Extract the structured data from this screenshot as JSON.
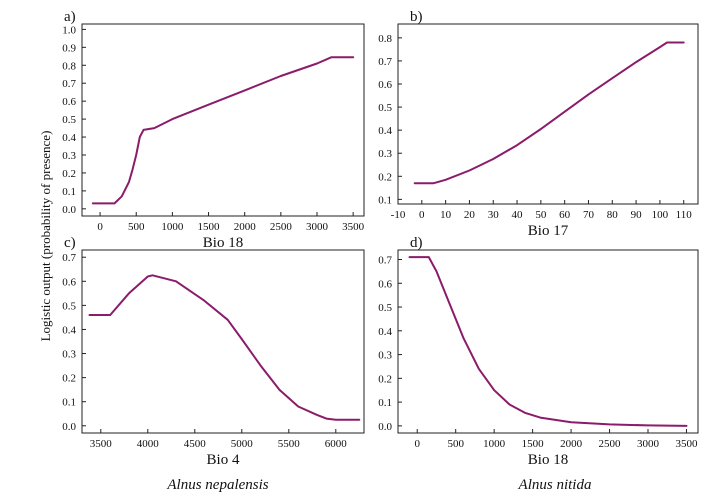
{
  "ylabel": "Logistic output (probability of presence)",
  "species": [
    "Alnus nepalensis",
    "Alnus nitida"
  ],
  "chart_data": [
    {
      "type": "line",
      "panel": "a)",
      "xlabel": "Bio 18",
      "xlim": [
        -250,
        3650
      ],
      "ylim": [
        -0.04,
        1.03
      ],
      "xticks": [
        0,
        500,
        1000,
        1500,
        2000,
        2500,
        3000,
        3500
      ],
      "yticks": [
        0.0,
        0.1,
        0.2,
        0.3,
        0.4,
        0.5,
        0.6,
        0.7,
        0.8,
        0.9,
        1.0
      ],
      "ytick_labels": [
        "0.0",
        "0.1",
        "0.2",
        "0.3",
        "0.4",
        "0.5",
        "0.6",
        "0.7",
        "0.8",
        "0.9",
        "1.0"
      ],
      "x": [
        -100,
        200,
        300,
        400,
        450,
        500,
        550,
        600,
        750,
        1000,
        1500,
        2000,
        2500,
        3000,
        3200,
        3500
      ],
      "y": [
        0.03,
        0.03,
        0.07,
        0.15,
        0.22,
        0.3,
        0.4,
        0.44,
        0.45,
        0.5,
        0.58,
        0.66,
        0.74,
        0.81,
        0.845,
        0.845
      ]
    },
    {
      "type": "line",
      "panel": "b)",
      "xlabel": "Bio 17",
      "xlim": [
        -10,
        116
      ],
      "ylim": [
        0.08,
        0.86
      ],
      "xticks": [
        -10,
        0,
        10,
        20,
        30,
        40,
        50,
        60,
        70,
        80,
        90,
        100,
        110
      ],
      "yticks": [
        0.1,
        0.2,
        0.3,
        0.4,
        0.5,
        0.6,
        0.7,
        0.8
      ],
      "ytick_labels": [
        "0.1",
        "0.2",
        "0.3",
        "0.4",
        "0.5",
        "0.6",
        "0.7",
        "0.8"
      ],
      "x": [
        -3,
        5,
        10,
        20,
        30,
        40,
        50,
        60,
        70,
        80,
        90,
        100,
        103,
        110
      ],
      "y": [
        0.17,
        0.17,
        0.185,
        0.225,
        0.275,
        0.335,
        0.405,
        0.48,
        0.555,
        0.625,
        0.695,
        0.76,
        0.78,
        0.78
      ]
    },
    {
      "type": "line",
      "panel": "c)",
      "xlabel": "Bio 4",
      "xlim": [
        3300,
        6300
      ],
      "ylim": [
        -0.03,
        0.73
      ],
      "xticks": [
        3500,
        4000,
        4500,
        5000,
        5500,
        6000
      ],
      "yticks": [
        0.0,
        0.1,
        0.2,
        0.3,
        0.4,
        0.5,
        0.6,
        0.7
      ],
      "ytick_labels": [
        "0.0",
        "0.1",
        "0.2",
        "0.3",
        "0.4",
        "0.5",
        "0.6",
        "0.7"
      ],
      "x": [
        3380,
        3600,
        3800,
        4000,
        4050,
        4300,
        4600,
        4850,
        5000,
        5200,
        5400,
        5600,
        5800,
        5900,
        6000,
        6250
      ],
      "y": [
        0.46,
        0.46,
        0.55,
        0.62,
        0.625,
        0.6,
        0.52,
        0.44,
        0.36,
        0.25,
        0.15,
        0.08,
        0.045,
        0.03,
        0.025,
        0.025
      ]
    },
    {
      "type": "line",
      "panel": "d)",
      "xlabel": "Bio 18",
      "xlim": [
        -250,
        3650
      ],
      "ylim": [
        -0.03,
        0.74
      ],
      "xticks": [
        0,
        500,
        1000,
        1500,
        2000,
        2500,
        3000,
        3500
      ],
      "yticks": [
        0.0,
        0.1,
        0.2,
        0.3,
        0.4,
        0.5,
        0.6,
        0.7
      ],
      "ytick_labels": [
        "0.0",
        "0.1",
        "0.2",
        "0.3",
        "0.4",
        "0.5",
        "0.6",
        "0.7"
      ],
      "x": [
        -100,
        150,
        250,
        400,
        500,
        600,
        800,
        1000,
        1200,
        1400,
        1600,
        2000,
        2500,
        3000,
        3500
      ],
      "y": [
        0.71,
        0.71,
        0.65,
        0.53,
        0.45,
        0.37,
        0.24,
        0.15,
        0.09,
        0.055,
        0.035,
        0.015,
        0.006,
        0.002,
        0.0
      ]
    }
  ]
}
